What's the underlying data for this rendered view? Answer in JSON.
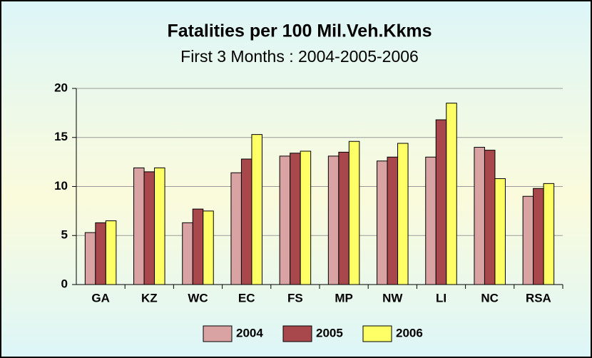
{
  "chart_data": {
    "type": "bar",
    "title": "Fatalities per 100 Mil.Veh.Kkms",
    "subtitle": "First 3 Months : 2004-2005-2006",
    "categories": [
      "GA",
      "KZ",
      "WC",
      "EC",
      "FS",
      "MP",
      "NW",
      "LI",
      "NC",
      "RSA"
    ],
    "series": [
      {
        "name": "2004",
        "color": "#d9a3a3",
        "values": [
          5.3,
          11.9,
          6.3,
          11.4,
          13.1,
          13.1,
          12.6,
          13.0,
          14.0,
          9.0
        ]
      },
      {
        "name": "2005",
        "color": "#a8484c",
        "values": [
          6.3,
          11.5,
          7.7,
          12.8,
          13.4,
          13.5,
          13.0,
          16.8,
          13.7,
          9.8
        ]
      },
      {
        "name": "2006",
        "color": "#ffff66",
        "values": [
          6.5,
          11.9,
          7.5,
          15.3,
          13.6,
          14.6,
          14.4,
          18.5,
          10.8,
          10.3
        ]
      }
    ],
    "ylim": [
      0,
      20
    ],
    "yticks": [
      0,
      5,
      10,
      15,
      20
    ],
    "grid": true,
    "legend": "bottom"
  }
}
